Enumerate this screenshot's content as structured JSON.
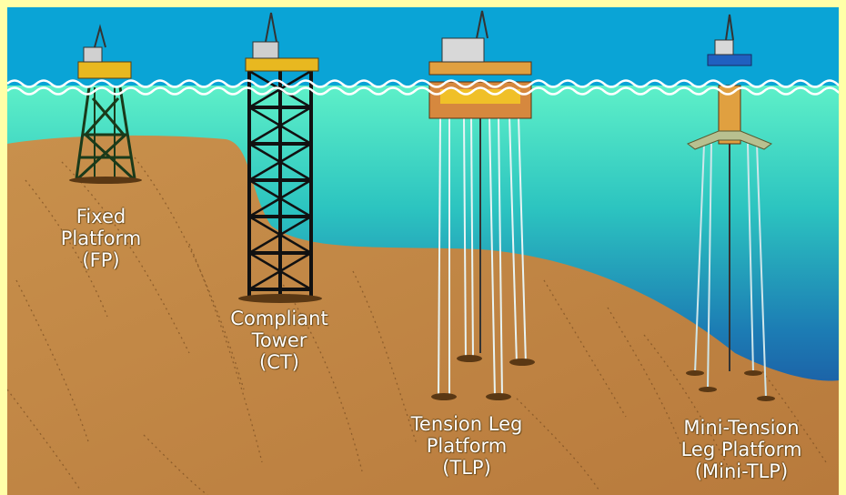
{
  "colors": {
    "background": "#ffffa8",
    "sky": "#0aa4d6",
    "water_top": "#5ef0c8",
    "water_deep": "#1e2c8c",
    "seabed": "#c88a48",
    "tower": "#1a1a1a",
    "label_text": "#ffffff"
  },
  "platforms": [
    {
      "id": "fp",
      "lines": [
        "Fixed",
        "Platform",
        "(FP)"
      ]
    },
    {
      "id": "ct",
      "lines": [
        "Compliant",
        "Tower",
        "(CT)"
      ]
    },
    {
      "id": "tlp",
      "lines": [
        "Tension Leg",
        "Platform",
        "(TLP)"
      ]
    },
    {
      "id": "mini-tlp",
      "lines": [
        "Mini-Tension",
        "Leg Platform",
        "(Mini-TLP)"
      ]
    }
  ]
}
